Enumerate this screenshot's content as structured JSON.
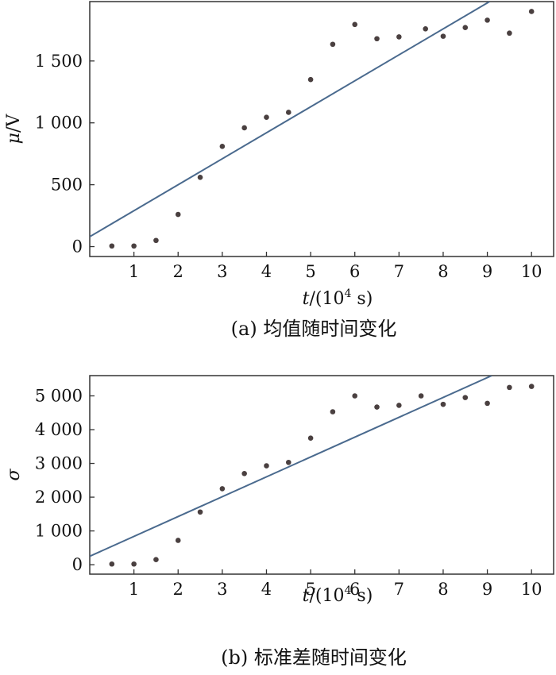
{
  "chart_data": [
    {
      "type": "scatter",
      "caption": "(a) 均值随时间变化",
      "xlabel": {
        "var": "t",
        "rest": "/(10",
        "sup": "4",
        "unit": " s)"
      },
      "ylabel": {
        "var": "μ",
        "unit": "/V"
      },
      "xlim": [
        0,
        10.5
      ],
      "ylim": [
        -80,
        1980
      ],
      "xticks": [
        1,
        2,
        3,
        4,
        5,
        6,
        7,
        8,
        9,
        10
      ],
      "xtick_labels": [
        "1",
        "2",
        "3",
        "4",
        "5",
        "6",
        "7",
        "8",
        "9",
        "10"
      ],
      "yticks": [
        0,
        500,
        1000,
        1500
      ],
      "ytick_labels": [
        "0",
        "500",
        "1 000",
        "1 500"
      ],
      "grid": false,
      "points": {
        "x": [
          0.5,
          1,
          1.5,
          2,
          2.5,
          3,
          3.5,
          4,
          4.5,
          5,
          5.5,
          6,
          6.5,
          7,
          7.6,
          8,
          8.5,
          9,
          9.5,
          10
        ],
        "y": [
          5,
          5,
          50,
          260,
          560,
          810,
          960,
          1045,
          1085,
          1350,
          1635,
          1795,
          1680,
          1695,
          1760,
          1700,
          1770,
          1830,
          1725,
          1900
        ]
      },
      "fit_line": {
        "x": [
          0,
          9.05
        ],
        "y": [
          80,
          1980
        ]
      }
    },
    {
      "type": "scatter",
      "caption": "(b) 标准差随时间变化",
      "xlabel": {
        "var": "t",
        "rest": "/(10",
        "sup": "4",
        "unit": " s)"
      },
      "ylabel": {
        "var": "σ",
        "unit": ""
      },
      "xlim": [
        0,
        10.5
      ],
      "ylim": [
        -280,
        5600
      ],
      "xticks": [
        1,
        2,
        3,
        4,
        5,
        6,
        7,
        8,
        9,
        10
      ],
      "xtick_labels": [
        "1",
        "2",
        "3",
        "4",
        "5",
        "6",
        "7",
        "8",
        "9",
        "10"
      ],
      "yticks": [
        0,
        1000,
        2000,
        3000,
        4000,
        5000
      ],
      "ytick_labels": [
        "0",
        "1 000",
        "2 000",
        "3 000",
        "4 000",
        "5 000"
      ],
      "grid": false,
      "points": {
        "x": [
          0.5,
          1,
          1.5,
          2,
          2.5,
          3,
          3.5,
          4,
          4.5,
          5,
          5.5,
          6,
          6.5,
          7,
          7.5,
          8,
          8.5,
          9,
          9.5,
          10
        ],
        "y": [
          20,
          20,
          150,
          720,
          1560,
          2250,
          2700,
          2930,
          3030,
          3750,
          4530,
          5000,
          4670,
          4720,
          5000,
          4750,
          4950,
          4780,
          5250,
          5280
        ]
      },
      "fit_line": {
        "x": [
          0,
          9.1
        ],
        "y": [
          250,
          5600
        ]
      }
    }
  ]
}
